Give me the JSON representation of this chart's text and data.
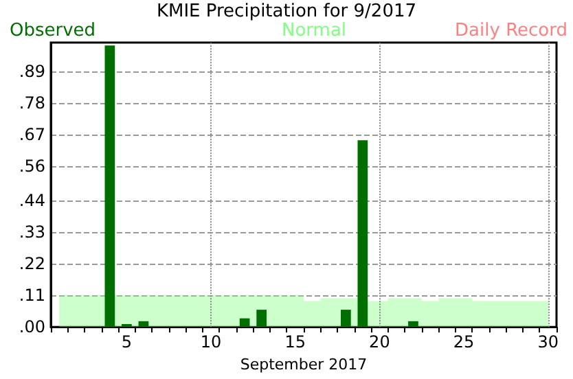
{
  "chart_data": {
    "type": "bar",
    "title": "KMIE Precipitation for 9/2017",
    "xlabel": "September 2017",
    "categories": [
      null,
      null,
      null,
      null,
      "5",
      null,
      null,
      null,
      null,
      "10",
      null,
      null,
      null,
      null,
      "15",
      null,
      null,
      null,
      null,
      "20",
      null,
      null,
      null,
      null,
      "25",
      null,
      null,
      null,
      null,
      "30"
    ],
    "series": [
      {
        "name": "Normal",
        "type": "area",
        "color": "#80ff80",
        "values": [
          0.11,
          0.11,
          0.11,
          null,
          0.11,
          0.11,
          0.11,
          0.11,
          0.11,
          0.11,
          0.11,
          0.11,
          0.11,
          0.11,
          0.11,
          0.09,
          0.1,
          0.1,
          null,
          0.09,
          0.1,
          0.1,
          0.09,
          0.1,
          0.1,
          0.09,
          0.09,
          0.09,
          0.09,
          0.09
        ]
      },
      {
        "name": "Observed",
        "color": "#006e00",
        "values": [
          null,
          null,
          null,
          0.98,
          0.01,
          0.02,
          null,
          null,
          null,
          null,
          null,
          0.03,
          0.06,
          null,
          null,
          null,
          null,
          0.06,
          0.65,
          null,
          null,
          0.02,
          null,
          null,
          null,
          null,
          null,
          null,
          null,
          null
        ]
      },
      {
        "name": "Daily Record",
        "color": "#ff8080",
        "values": [
          null,
          null,
          null,
          null,
          null,
          null,
          null,
          null,
          null,
          null,
          null,
          null,
          null,
          null,
          null,
          null,
          null,
          null,
          null,
          null,
          null,
          null,
          null,
          null,
          null,
          null,
          null,
          null,
          null,
          null
        ]
      }
    ],
    "ylim": [
      0,
      0.99
    ],
    "yticks": [
      {
        "value": 0,
        "label": ".00"
      },
      {
        "value": 0.11,
        "label": ".11"
      },
      {
        "value": 0.22,
        "label": ".22"
      },
      {
        "value": 0.33,
        "label": ".33"
      },
      {
        "value": 0.44,
        "label": ".44"
      },
      {
        "value": 0.56,
        "label": ".56"
      },
      {
        "value": 0.67,
        "label": ".67"
      },
      {
        "value": 0.78,
        "label": ".78"
      },
      {
        "value": 0.89,
        "label": ".89"
      }
    ],
    "grid": "y",
    "legend": "top",
    "ref_lines": [
      {
        "axis": "x",
        "value": "10",
        "color": "#888888",
        "line_style": "dotted"
      },
      {
        "axis": "x",
        "value": "20",
        "color": "#888888",
        "line_style": "dotted"
      },
      {
        "axis": "x",
        "value": "30",
        "color": "#888888",
        "line_style": "dotted"
      }
    ]
  }
}
